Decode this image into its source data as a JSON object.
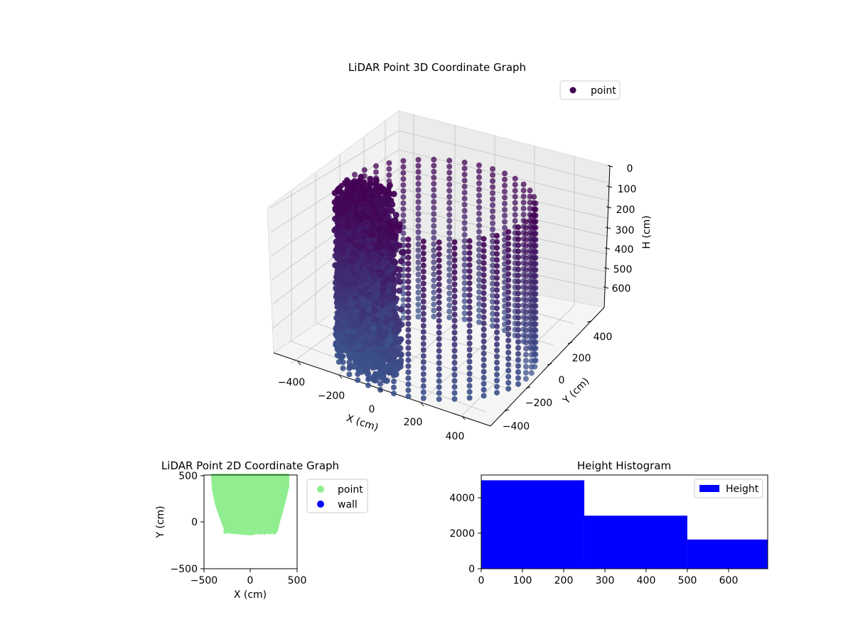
{
  "chart_data": [
    {
      "type": "scatter",
      "projection": "3d",
      "title": "LiDAR Point 3D Coordinate Graph",
      "xlabel": "X (cm)",
      "ylabel": "Y (cm)",
      "zlabel": "H (cm)",
      "xticks": [
        "−400",
        "−200",
        "0",
        "200",
        "400"
      ],
      "yticks": [
        "−400",
        "−200",
        "0",
        "200",
        "400"
      ],
      "zticks": [
        "0",
        "100",
        "200",
        "300",
        "400",
        "500",
        "600"
      ],
      "xlim": [
        -480,
        480
      ],
      "ylim": [
        -480,
        480
      ],
      "zlim": [
        680,
        0
      ],
      "z_axis_inverted": true,
      "colormap": "viridis (dark purple to blue by height)",
      "legend": {
        "placement": "top-right",
        "entries": [
          "point"
        ]
      },
      "grid": true,
      "series": [
        {
          "name": "point",
          "color": "#440154",
          "shape": "ring of vertical point columns, radius ~400, H from ~0 to ~650, plus a dense curved wall segment on the -x side",
          "ring_radius": 400,
          "h_range": [
            0,
            650
          ]
        }
      ]
    },
    {
      "type": "scatter",
      "title": "LiDAR Point 2D Coordinate Graph",
      "xlabel": "X (cm)",
      "ylabel": "Y (cm)",
      "xticks": [
        "−500",
        "0",
        "500"
      ],
      "yticks": [
        "−500",
        "0",
        "500"
      ],
      "xlim": [
        -500,
        500
      ],
      "ylim": [
        -500,
        500
      ],
      "grid": false,
      "legend": {
        "placement": "outside right",
        "entries": [
          "point",
          "wall"
        ]
      },
      "series": [
        {
          "name": "point",
          "color": "#90ee90",
          "outline": [
            [
              -410,
              500
            ],
            [
              -400,
              350
            ],
            [
              -370,
              200
            ],
            [
              -330,
              80
            ],
            [
              -300,
              0
            ],
            [
              -270,
              -80
            ],
            [
              -220,
              -110
            ],
            [
              -100,
              -120
            ],
            [
              0,
              -130
            ],
            [
              100,
              -110
            ],
            [
              200,
              -100
            ],
            [
              280,
              -90
            ],
            [
              300,
              0
            ],
            [
              330,
              100
            ],
            [
              370,
              250
            ],
            [
              400,
              380
            ],
            [
              400,
              500
            ]
          ]
        },
        {
          "name": "wall",
          "color": "#0000ff"
        }
      ]
    },
    {
      "type": "bar",
      "subtype": "histogram",
      "title": "Height Histogram",
      "xticks": [
        "0",
        "100",
        "200",
        "300",
        "400",
        "500",
        "600"
      ],
      "yticks": [
        "0",
        "2000",
        "4000"
      ],
      "xlim": [
        0,
        695
      ],
      "ylim": [
        0,
        5300
      ],
      "grid": false,
      "legend": {
        "placement": "top-right",
        "entries": [
          "Height"
        ]
      },
      "bins": [
        {
          "x0": 0,
          "x1": 250,
          "count": 5000
        },
        {
          "x0": 250,
          "x1": 500,
          "count": 3000
        },
        {
          "x0": 500,
          "x1": 695,
          "count": 1650
        }
      ],
      "series": [
        {
          "name": "Height",
          "color": "#0000ff"
        }
      ]
    }
  ]
}
